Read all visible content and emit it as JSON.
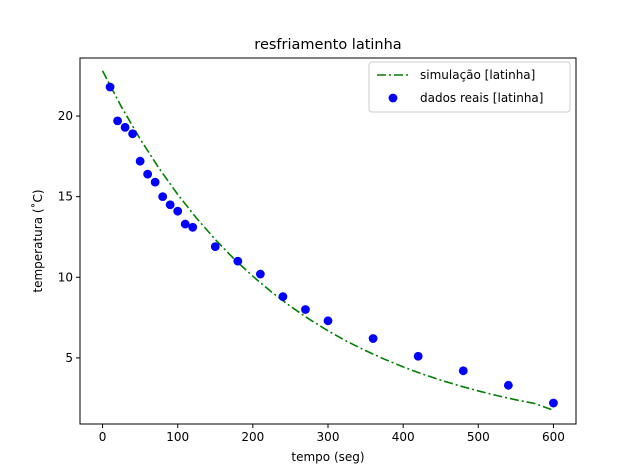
{
  "chart_data": {
    "type": "line",
    "title": "resfriamento latinha",
    "xlabel": "tempo (seg)",
    "ylabel": "temperatura (˚C)",
    "xlim": [
      -30,
      630
    ],
    "ylim": [
      0.9,
      23.6
    ],
    "xticks": [
      0,
      100,
      200,
      300,
      400,
      500,
      600
    ],
    "yticks": [
      5,
      10,
      15,
      20
    ],
    "grid": false,
    "legend_position": "top-right",
    "series": [
      {
        "name": "simulação [latinha]",
        "kind": "line",
        "style": "dash-dot",
        "color": "#008000",
        "x": [
          0,
          25,
          50,
          75,
          100,
          125,
          150,
          175,
          200,
          225,
          250,
          275,
          300,
          325,
          350,
          375,
          400,
          425,
          450,
          475,
          500,
          525,
          550,
          575,
          600
        ],
        "y": [
          22.8,
          20.58,
          18.58,
          16.77,
          15.14,
          13.67,
          12.34,
          11.14,
          10.06,
          9.08,
          8.2,
          7.4,
          6.68,
          6.03,
          5.45,
          4.92,
          4.44,
          4.01,
          3.62,
          3.27,
          2.95,
          2.66,
          2.4,
          2.17,
          1.75
        ]
      },
      {
        "name": "dados reais [latinha]",
        "kind": "scatter",
        "color": "#0000ff",
        "x": [
          10,
          20,
          30,
          40,
          50,
          60,
          70,
          80,
          90,
          100,
          110,
          120,
          150,
          180,
          210,
          240,
          270,
          300,
          360,
          420,
          480,
          540,
          600
        ],
        "y": [
          21.8,
          19.7,
          19.3,
          18.9,
          17.2,
          16.4,
          15.9,
          15.0,
          14.5,
          14.1,
          13.3,
          13.1,
          11.9,
          11.0,
          10.2,
          8.8,
          8.0,
          7.3,
          6.2,
          5.1,
          4.2,
          3.3,
          2.2
        ]
      }
    ]
  }
}
